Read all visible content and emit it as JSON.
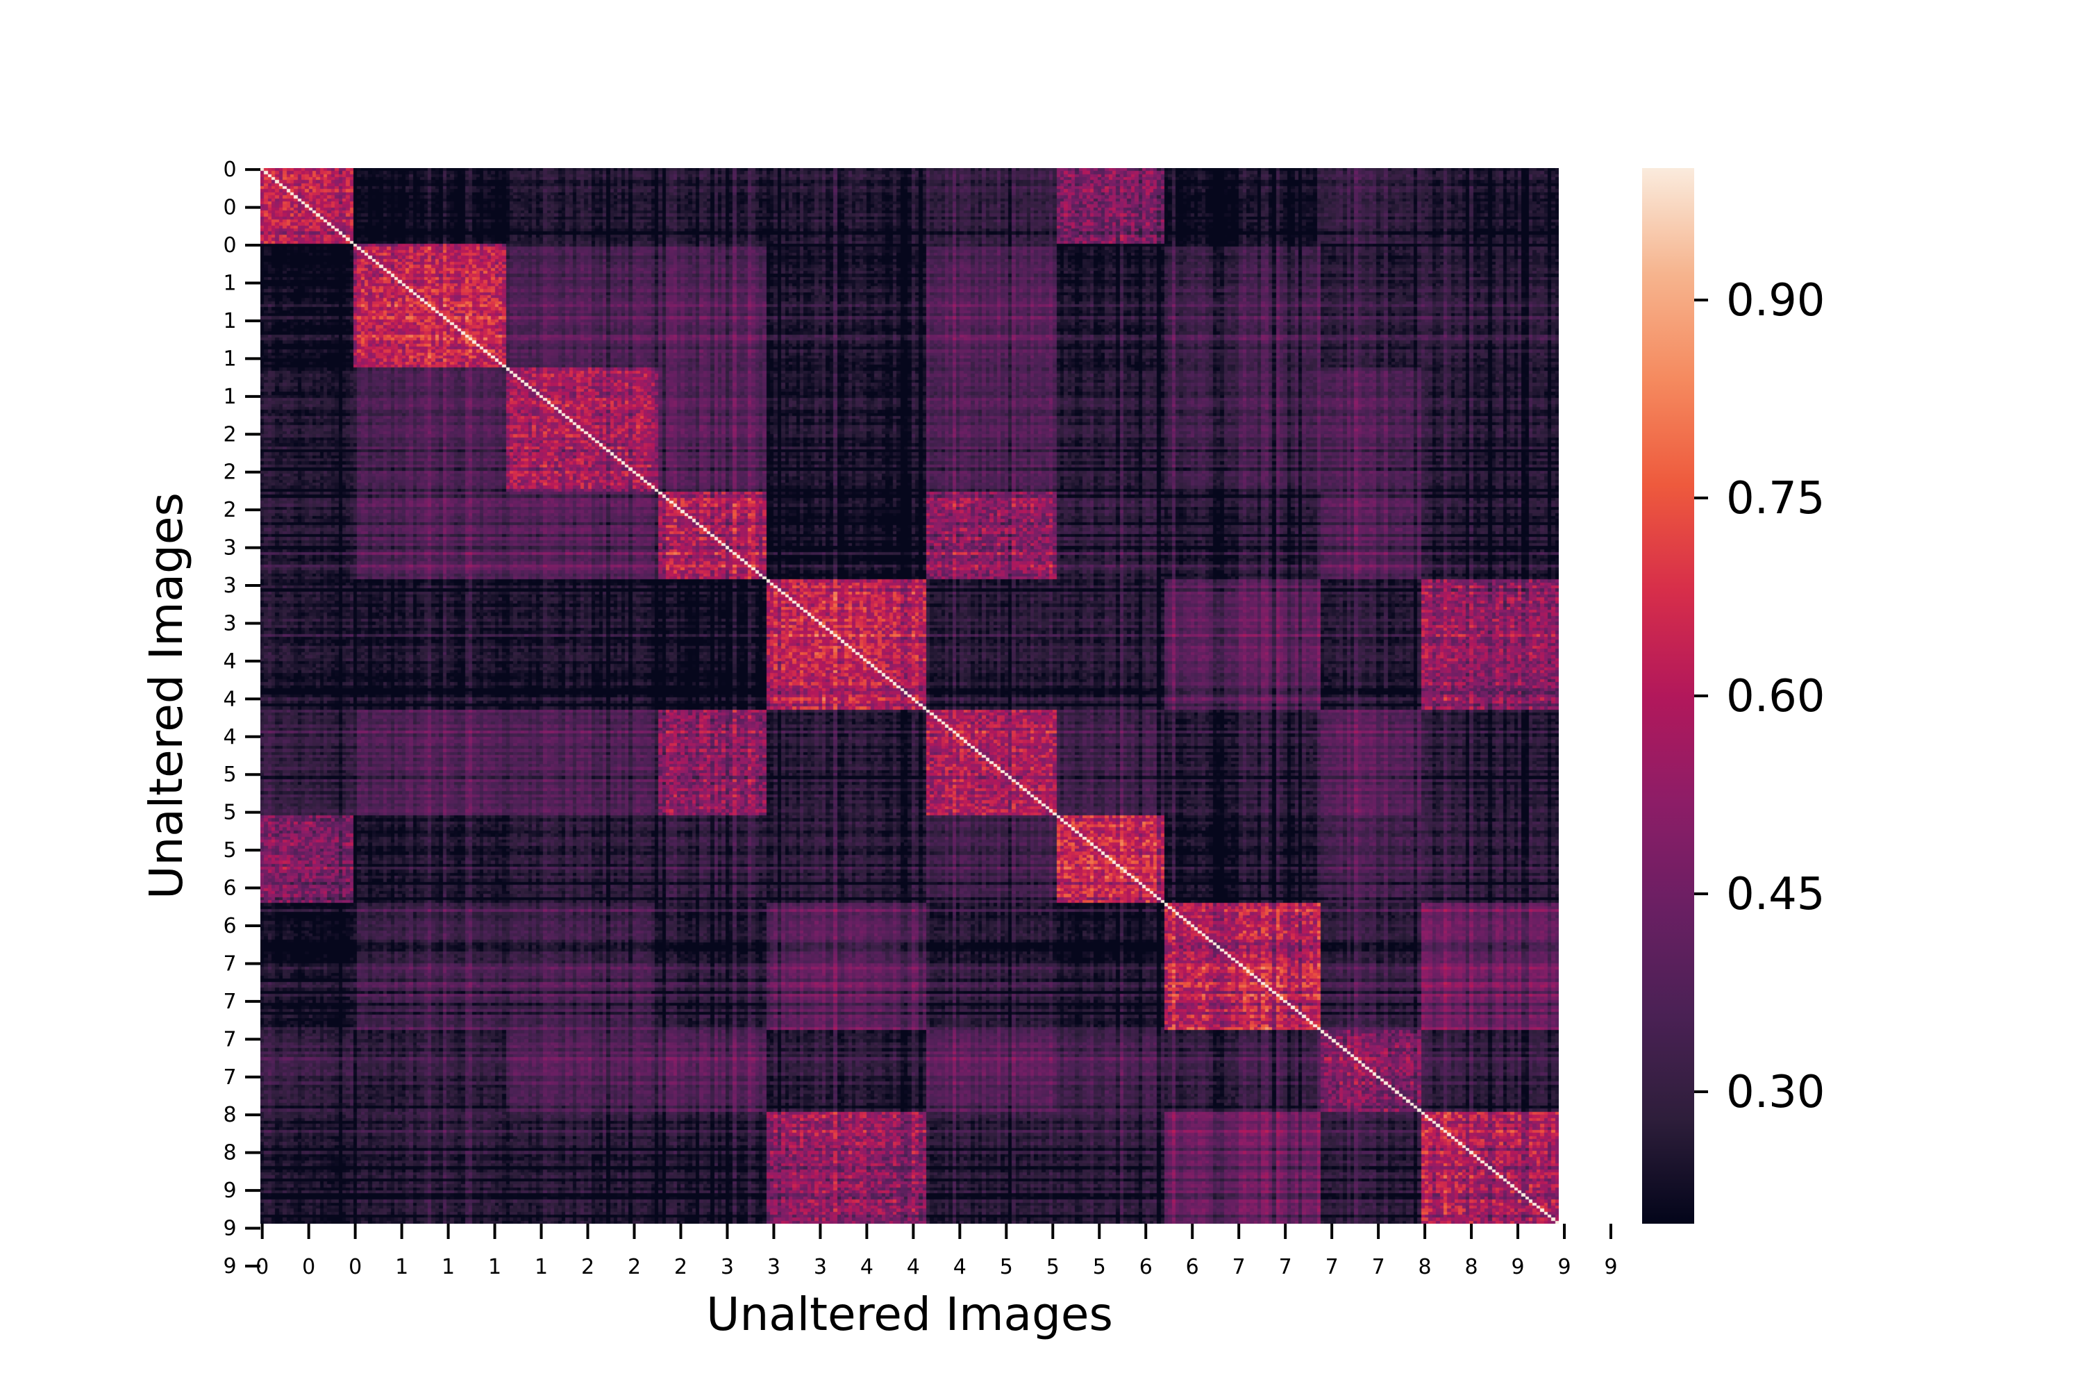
{
  "chart_data": {
    "type": "heatmap",
    "title": "",
    "xlabel": "Unaltered Images",
    "ylabel": "Unaltered Images",
    "classes": [
      "0",
      "1",
      "2",
      "3",
      "4",
      "5",
      "6",
      "7",
      "8",
      "9"
    ],
    "class_counts": [
      25,
      41,
      41,
      29,
      43,
      35,
      29,
      42,
      27,
      37
    ],
    "x_tick_labels": [
      "0",
      "0",
      "0",
      "1",
      "1",
      "1",
      "1",
      "2",
      "2",
      "2",
      "3",
      "3",
      "3",
      "4",
      "4",
      "4",
      "5",
      "5",
      "5",
      "6",
      "6",
      "7",
      "7",
      "7",
      "7",
      "8",
      "8",
      "9",
      "9",
      "9"
    ],
    "y_tick_labels": [
      "0",
      "0",
      "0",
      "1",
      "1",
      "1",
      "1",
      "2",
      "2",
      "2",
      "3",
      "3",
      "3",
      "4",
      "4",
      "4",
      "5",
      "5",
      "5",
      "6",
      "6",
      "7",
      "7",
      "7",
      "7",
      "8",
      "8",
      "9",
      "9",
      "9"
    ],
    "tick_step_cells": 12.5,
    "colormap": "rocket",
    "colormap_stops": [
      "#03051a",
      "#2e1e3b",
      "#4b2155",
      "#6a1f63",
      "#8d1d67",
      "#b2185b",
      "#d72e4a",
      "#ee5a3d",
      "#f58a5f",
      "#f6b48e",
      "#faebdd"
    ],
    "colorbar": {
      "min": 0.2,
      "max": 1.0,
      "ticks": [
        0.9,
        0.75,
        0.6,
        0.45,
        0.3
      ],
      "tick_labels": [
        "0.90",
        "0.75",
        "0.60",
        "0.45",
        "0.30"
      ]
    },
    "diagonal_value": 1.0,
    "block_similarity": {
      "classes": [
        "0",
        "1",
        "2",
        "3",
        "4",
        "5",
        "6",
        "7",
        "8",
        "9"
      ],
      "matrix": [
        [
          0.62,
          0.2,
          0.26,
          0.27,
          0.26,
          0.3,
          0.48,
          0.22,
          0.31,
          0.25
        ],
        [
          0.2,
          0.62,
          0.36,
          0.38,
          0.24,
          0.37,
          0.23,
          0.32,
          0.28,
          0.27
        ],
        [
          0.26,
          0.36,
          0.58,
          0.4,
          0.25,
          0.37,
          0.27,
          0.34,
          0.38,
          0.27
        ],
        [
          0.27,
          0.38,
          0.4,
          0.6,
          0.22,
          0.52,
          0.29,
          0.27,
          0.4,
          0.26
        ],
        [
          0.26,
          0.24,
          0.25,
          0.22,
          0.64,
          0.27,
          0.27,
          0.41,
          0.28,
          0.54
        ],
        [
          0.3,
          0.37,
          0.37,
          0.52,
          0.27,
          0.58,
          0.32,
          0.27,
          0.4,
          0.27
        ],
        [
          0.48,
          0.23,
          0.27,
          0.29,
          0.27,
          0.32,
          0.64,
          0.23,
          0.34,
          0.28
        ],
        [
          0.22,
          0.32,
          0.34,
          0.27,
          0.41,
          0.27,
          0.23,
          0.62,
          0.31,
          0.45
        ],
        [
          0.31,
          0.28,
          0.38,
          0.4,
          0.28,
          0.4,
          0.34,
          0.31,
          0.5,
          0.3
        ],
        [
          0.25,
          0.27,
          0.27,
          0.26,
          0.54,
          0.27,
          0.28,
          0.45,
          0.3,
          0.6
        ]
      ]
    }
  }
}
